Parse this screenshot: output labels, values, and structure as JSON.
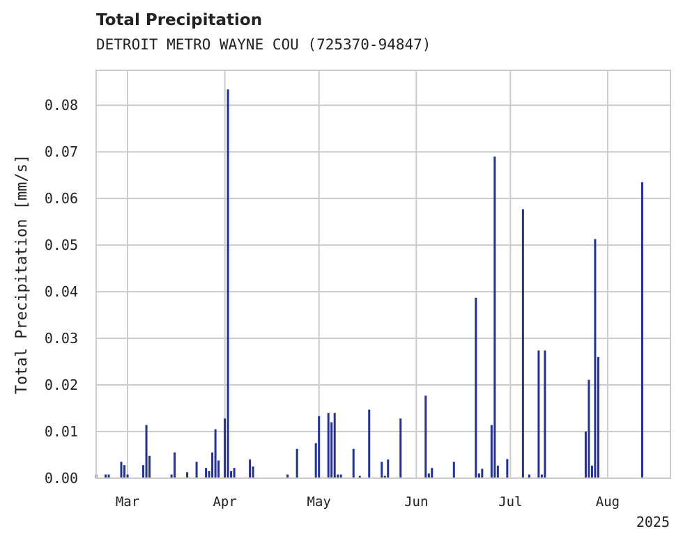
{
  "title": "Total Precipitation",
  "subtitle": "DETROIT METRO WAYNE COU (725370-94847)",
  "colors": {
    "bar": "#233191",
    "grid": "#cccccc",
    "axis": "#cccccc",
    "text": "#222222"
  },
  "chart_data": {
    "type": "bar",
    "ylabel": "Total Precipitation [mm/s]",
    "xlabel": "",
    "year_label": "2025",
    "ylim": [
      0,
      0.0875
    ],
    "yticks": [
      "0.00",
      "0.01",
      "0.02",
      "0.03",
      "0.04",
      "0.05",
      "0.06",
      "0.07",
      "0.08"
    ],
    "xlim": [
      "2025-02-19",
      "2025-08-21"
    ],
    "xticks": [
      {
        "label": "Mar",
        "date": "2025-03-01"
      },
      {
        "label": "Apr",
        "date": "2025-04-01"
      },
      {
        "label": "May",
        "date": "2025-05-01"
      },
      {
        "label": "Jun",
        "date": "2025-06-01"
      },
      {
        "label": "Jul",
        "date": "2025-07-01"
      },
      {
        "label": "Aug",
        "date": "2025-08-01"
      }
    ],
    "grid": true,
    "series": [
      {
        "x": [
          "2025-02-19",
          "2025-02-22",
          "2025-02-23",
          "2025-02-27",
          "2025-02-28",
          "2025-03-01",
          "2025-03-06",
          "2025-03-07",
          "2025-03-08",
          "2025-03-15",
          "2025-03-16",
          "2025-03-20",
          "2025-03-23",
          "2025-03-26",
          "2025-03-27",
          "2025-03-28",
          "2025-03-29",
          "2025-03-30",
          "2025-04-01",
          "2025-04-02",
          "2025-04-03",
          "2025-04-04",
          "2025-04-09",
          "2025-04-10",
          "2025-04-21",
          "2025-04-24",
          "2025-04-30",
          "2025-05-01",
          "2025-05-04",
          "2025-05-05",
          "2025-05-06",
          "2025-05-07",
          "2025-05-08",
          "2025-05-12",
          "2025-05-14",
          "2025-05-17",
          "2025-05-21",
          "2025-05-22",
          "2025-05-23",
          "2025-05-27",
          "2025-06-04",
          "2025-06-05",
          "2025-06-06",
          "2025-06-13",
          "2025-06-20",
          "2025-06-21",
          "2025-06-22",
          "2025-06-25",
          "2025-06-26",
          "2025-06-27",
          "2025-06-30",
          "2025-07-05",
          "2025-07-07",
          "2025-07-10",
          "2025-07-11",
          "2025-07-12",
          "2025-07-25",
          "2025-07-26",
          "2025-07-27",
          "2025-07-28",
          "2025-07-29",
          "2025-08-12"
        ],
        "values": [
          0.0008,
          0.0008,
          0.0008,
          0.0035,
          0.0028,
          0.0008,
          0.0028,
          0.0114,
          0.0048,
          0.0008,
          0.0055,
          0.0013,
          0.0035,
          0.0022,
          0.0015,
          0.0055,
          0.0105,
          0.0038,
          0.0128,
          0.0834,
          0.0015,
          0.0022,
          0.004,
          0.0025,
          0.0008,
          0.0063,
          0.0075,
          0.0133,
          0.014,
          0.012,
          0.014,
          0.0008,
          0.0008,
          0.0063,
          0.0005,
          0.0147,
          0.0035,
          0.0005,
          0.004,
          0.0128,
          0.0177,
          0.001,
          0.0022,
          0.0035,
          0.0387,
          0.001,
          0.002,
          0.0114,
          0.069,
          0.0027,
          0.0041,
          0.0577,
          0.0008,
          0.0274,
          0.0008,
          0.0274,
          0.01,
          0.0211,
          0.0027,
          0.0513,
          0.026,
          0.0635
        ]
      }
    ]
  }
}
